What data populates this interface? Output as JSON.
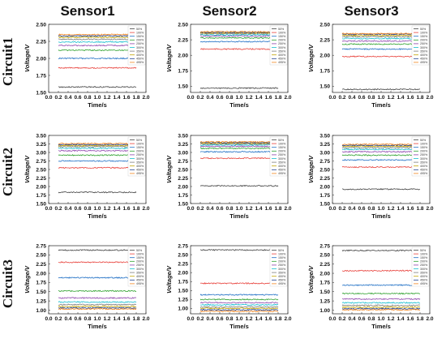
{
  "column_titles": [
    "Sensor1",
    "Sensor2",
    "Sensor3"
  ],
  "row_titles": [
    "Circuit1",
    "Circuit2",
    "Circuit3"
  ],
  "legend_labels": [
    "50%",
    "100%",
    "150%",
    "200%",
    "250%",
    "300%",
    "350%",
    "400%",
    "450%",
    "495%"
  ],
  "series_colors": [
    "#444444",
    "#e8413b",
    "#1f6fc5",
    "#2ca02c",
    "#8e44ad",
    "#17becf",
    "#7f7f7f",
    "#c2a400",
    "#1f3f8f",
    "#f2861f"
  ],
  "chart_data": [
    {
      "type": "line",
      "panel": "Circuit1-Sensor1",
      "xlabel": "Time/s",
      "ylabel": "Voltage/V",
      "x": [
        0.2,
        1.8
      ],
      "xlim": [
        0.0,
        2.0
      ],
      "xticks": [
        "0.0",
        "0.2",
        "0.4",
        "0.6",
        "0.8",
        "1.0",
        "1.2",
        "1.4",
        "1.6",
        "1.8",
        "2.0"
      ],
      "ylim": [
        1.5,
        2.5
      ],
      "yticks": [
        "1.50",
        "1.75",
        "2.00",
        "2.25",
        "2.50"
      ],
      "grid": false,
      "legend": "top-right",
      "series": [
        {
          "name": "50%",
          "values": [
            1.58,
            1.58
          ]
        },
        {
          "name": "100%",
          "values": [
            1.86,
            1.86
          ]
        },
        {
          "name": "150%",
          "values": [
            2.0,
            2.0
          ]
        },
        {
          "name": "200%",
          "values": [
            2.12,
            2.12
          ]
        },
        {
          "name": "250%",
          "values": [
            2.19,
            2.19
          ]
        },
        {
          "name": "300%",
          "values": [
            2.24,
            2.24
          ]
        },
        {
          "name": "350%",
          "values": [
            2.28,
            2.28
          ]
        },
        {
          "name": "400%",
          "values": [
            2.31,
            2.31
          ]
        },
        {
          "name": "450%",
          "values": [
            2.33,
            2.33
          ]
        },
        {
          "name": "495%",
          "values": [
            2.35,
            2.35
          ]
        }
      ]
    },
    {
      "type": "line",
      "panel": "Circuit1-Sensor2",
      "xlabel": "Time/s",
      "ylabel": "Voltage/V",
      "x": [
        0.2,
        1.8
      ],
      "xlim": [
        0.0,
        2.0
      ],
      "xticks": [
        "0.0",
        "0.2",
        "0.4",
        "0.6",
        "0.8",
        "1.0",
        "1.2",
        "1.4",
        "1.6",
        "1.8",
        "2.0"
      ],
      "ylim": [
        1.4,
        2.5
      ],
      "yticks": [
        "1.50",
        "1.75",
        "2.00",
        "2.25",
        "2.50"
      ],
      "grid": false,
      "legend": "top-right",
      "series": [
        {
          "name": "50%",
          "values": [
            1.47,
            1.47
          ]
        },
        {
          "name": "100%",
          "values": [
            2.1,
            2.1
          ]
        },
        {
          "name": "150%",
          "values": [
            2.22,
            2.22
          ]
        },
        {
          "name": "200%",
          "values": [
            2.28,
            2.28
          ]
        },
        {
          "name": "250%",
          "values": [
            2.31,
            2.31
          ]
        },
        {
          "name": "300%",
          "values": [
            2.33,
            2.33
          ]
        },
        {
          "name": "350%",
          "values": [
            2.35,
            2.35
          ]
        },
        {
          "name": "400%",
          "values": [
            2.36,
            2.36
          ]
        },
        {
          "name": "450%",
          "values": [
            2.37,
            2.37
          ]
        },
        {
          "name": "495%",
          "values": [
            2.38,
            2.38
          ]
        }
      ]
    },
    {
      "type": "line",
      "panel": "Circuit1-Sensor3",
      "xlabel": "Time/s",
      "ylabel": "Voltage/V",
      "x": [
        0.2,
        1.8
      ],
      "xlim": [
        0.0,
        2.0
      ],
      "xticks": [
        "0.0",
        "0.2",
        "0.4",
        "0.6",
        "0.8",
        "1.0",
        "1.2",
        "1.4",
        "1.6",
        "1.8",
        "2.0"
      ],
      "ylim": [
        1.4,
        2.5
      ],
      "yticks": [
        "1.50",
        "1.75",
        "2.00",
        "2.25",
        "2.50"
      ],
      "grid": false,
      "legend": "top-right",
      "series": [
        {
          "name": "50%",
          "values": [
            1.45,
            1.45
          ]
        },
        {
          "name": "100%",
          "values": [
            1.98,
            1.98
          ]
        },
        {
          "name": "150%",
          "values": [
            2.1,
            2.1
          ]
        },
        {
          "name": "200%",
          "values": [
            2.18,
            2.18
          ]
        },
        {
          "name": "250%",
          "values": [
            2.23,
            2.23
          ]
        },
        {
          "name": "300%",
          "values": [
            2.27,
            2.27
          ]
        },
        {
          "name": "350%",
          "values": [
            2.3,
            2.3
          ]
        },
        {
          "name": "400%",
          "values": [
            2.32,
            2.32
          ]
        },
        {
          "name": "450%",
          "values": [
            2.34,
            2.34
          ]
        },
        {
          "name": "495%",
          "values": [
            2.35,
            2.35
          ]
        }
      ]
    },
    {
      "type": "line",
      "panel": "Circuit2-Sensor1",
      "xlabel": "Time/s",
      "ylabel": "Voltage/V",
      "x": [
        0.2,
        1.8
      ],
      "xlim": [
        0.0,
        2.0
      ],
      "xticks": [
        "0.0",
        "0.2",
        "0.4",
        "0.6",
        "0.8",
        "1.0",
        "1.2",
        "1.4",
        "1.6",
        "1.8",
        "2.0"
      ],
      "ylim": [
        1.5,
        3.5
      ],
      "yticks": [
        "1.50",
        "1.75",
        "2.00",
        "2.25",
        "2.50",
        "2.75",
        "3.00",
        "3.25",
        "3.50"
      ],
      "grid": false,
      "legend": "top-right",
      "series": [
        {
          "name": "50%",
          "values": [
            1.83,
            1.83
          ]
        },
        {
          "name": "100%",
          "values": [
            2.55,
            2.55
          ]
        },
        {
          "name": "150%",
          "values": [
            2.75,
            2.75
          ]
        },
        {
          "name": "200%",
          "values": [
            2.92,
            2.92
          ]
        },
        {
          "name": "250%",
          "values": [
            3.05,
            3.05
          ]
        },
        {
          "name": "300%",
          "values": [
            3.12,
            3.12
          ]
        },
        {
          "name": "350%",
          "values": [
            3.17,
            3.17
          ]
        },
        {
          "name": "400%",
          "values": [
            3.2,
            3.2
          ]
        },
        {
          "name": "450%",
          "values": [
            3.23,
            3.23
          ]
        },
        {
          "name": "495%",
          "values": [
            3.26,
            3.26
          ]
        }
      ]
    },
    {
      "type": "line",
      "panel": "Circuit2-Sensor2",
      "xlabel": "Time/s",
      "ylabel": "Voltage/V",
      "x": [
        0.2,
        1.8
      ],
      "xlim": [
        0.0,
        2.0
      ],
      "xticks": [
        "0.0",
        "0.2",
        "0.4",
        "0.6",
        "0.8",
        "1.0",
        "1.2",
        "1.4",
        "1.6",
        "1.8",
        "2.0"
      ],
      "ylim": [
        1.5,
        3.5
      ],
      "yticks": [
        "1.50",
        "1.75",
        "2.00",
        "2.25",
        "2.50",
        "2.75",
        "3.00",
        "3.25",
        "3.50"
      ],
      "grid": false,
      "legend": "top-right",
      "series": [
        {
          "name": "50%",
          "values": [
            2.02,
            2.02
          ]
        },
        {
          "name": "100%",
          "values": [
            2.83,
            2.83
          ]
        },
        {
          "name": "150%",
          "values": [
            3.02,
            3.02
          ]
        },
        {
          "name": "200%",
          "values": [
            3.12,
            3.12
          ]
        },
        {
          "name": "250%",
          "values": [
            3.18,
            3.18
          ]
        },
        {
          "name": "300%",
          "values": [
            3.22,
            3.22
          ]
        },
        {
          "name": "350%",
          "values": [
            3.25,
            3.25
          ]
        },
        {
          "name": "400%",
          "values": [
            3.27,
            3.27
          ]
        },
        {
          "name": "450%",
          "values": [
            3.29,
            3.29
          ]
        },
        {
          "name": "495%",
          "values": [
            3.31,
            3.31
          ]
        }
      ]
    },
    {
      "type": "line",
      "panel": "Circuit2-Sensor3",
      "xlabel": "Time/s",
      "ylabel": "Voltage/V",
      "x": [
        0.2,
        1.8
      ],
      "xlim": [
        0.0,
        2.0
      ],
      "xticks": [
        "0.0",
        "0.2",
        "0.4",
        "0.6",
        "0.8",
        "1.0",
        "1.2",
        "1.4",
        "1.6",
        "1.8",
        "2.0"
      ],
      "ylim": [
        1.5,
        3.5
      ],
      "yticks": [
        "1.50",
        "1.75",
        "2.00",
        "2.25",
        "2.50",
        "2.75",
        "3.00",
        "3.25",
        "3.50"
      ],
      "grid": false,
      "legend": "top-right",
      "series": [
        {
          "name": "50%",
          "values": [
            1.92,
            1.92
          ]
        },
        {
          "name": "100%",
          "values": [
            2.57,
            2.57
          ]
        },
        {
          "name": "150%",
          "values": [
            2.78,
            2.78
          ]
        },
        {
          "name": "200%",
          "values": [
            2.92,
            2.92
          ]
        },
        {
          "name": "250%",
          "values": [
            3.02,
            3.02
          ]
        },
        {
          "name": "300%",
          "values": [
            3.09,
            3.09
          ]
        },
        {
          "name": "350%",
          "values": [
            3.14,
            3.14
          ]
        },
        {
          "name": "400%",
          "values": [
            3.18,
            3.18
          ]
        },
        {
          "name": "450%",
          "values": [
            3.21,
            3.21
          ]
        },
        {
          "name": "495%",
          "values": [
            3.24,
            3.24
          ]
        }
      ]
    },
    {
      "type": "line",
      "panel": "Circuit3-Sensor1",
      "xlabel": "Time/s",
      "ylabel": "Voltage/V",
      "x": [
        0.2,
        1.8
      ],
      "xlim": [
        0.0,
        2.0
      ],
      "xticks": [
        "0.0",
        "0.2",
        "0.4",
        "0.6",
        "0.8",
        "1.0",
        "1.2",
        "1.4",
        "1.6",
        "1.8",
        "2.0"
      ],
      "ylim": [
        0.9,
        2.75
      ],
      "yticks": [
        "1.00",
        "1.25",
        "1.50",
        "1.75",
        "2.00",
        "2.25",
        "2.50",
        "2.75"
      ],
      "grid": false,
      "legend": "top-right",
      "series": [
        {
          "name": "50%",
          "values": [
            2.63,
            2.63
          ]
        },
        {
          "name": "100%",
          "values": [
            2.3,
            2.3
          ]
        },
        {
          "name": "150%",
          "values": [
            1.88,
            1.88
          ]
        },
        {
          "name": "200%",
          "values": [
            1.52,
            1.52
          ]
        },
        {
          "name": "250%",
          "values": [
            1.33,
            1.33
          ]
        },
        {
          "name": "300%",
          "values": [
            1.22,
            1.22
          ]
        },
        {
          "name": "350%",
          "values": [
            1.15,
            1.15
          ]
        },
        {
          "name": "400%",
          "values": [
            1.1,
            1.1
          ]
        },
        {
          "name": "450%",
          "values": [
            1.06,
            1.06
          ]
        },
        {
          "name": "495%",
          "values": [
            1.03,
            1.03
          ]
        }
      ]
    },
    {
      "type": "line",
      "panel": "Circuit3-Sensor2",
      "xlabel": "Time/s",
      "ylabel": "Voltage/V",
      "x": [
        0.2,
        1.8
      ],
      "xlim": [
        0.0,
        2.0
      ],
      "xticks": [
        "0.0",
        "0.2",
        "0.4",
        "0.6",
        "0.8",
        "1.0",
        "1.2",
        "1.4",
        "1.6",
        "1.8",
        "2.0"
      ],
      "ylim": [
        0.85,
        2.75
      ],
      "yticks": [
        "1.00",
        "1.25",
        "1.50",
        "1.75",
        "2.00",
        "2.25",
        "2.50",
        "2.75"
      ],
      "grid": false,
      "legend": "top-right",
      "series": [
        {
          "name": "50%",
          "values": [
            2.63,
            2.63
          ]
        },
        {
          "name": "100%",
          "values": [
            1.7,
            1.7
          ]
        },
        {
          "name": "150%",
          "values": [
            1.38,
            1.38
          ]
        },
        {
          "name": "200%",
          "values": [
            1.25,
            1.25
          ]
        },
        {
          "name": "250%",
          "values": [
            1.16,
            1.16
          ]
        },
        {
          "name": "300%",
          "values": [
            1.1,
            1.1
          ]
        },
        {
          "name": "350%",
          "values": [
            1.04,
            1.04
          ]
        },
        {
          "name": "400%",
          "values": [
            1.0,
            1.0
          ]
        },
        {
          "name": "450%",
          "values": [
            0.96,
            0.96
          ]
        },
        {
          "name": "495%",
          "values": [
            0.92,
            0.92
          ]
        }
      ]
    },
    {
      "type": "line",
      "panel": "Circuit3-Sensor3",
      "xlabel": "Time/s",
      "ylabel": "Voltage/V",
      "x": [
        0.2,
        1.8
      ],
      "xlim": [
        0.0,
        2.0
      ],
      "xticks": [
        "0.0",
        "0.2",
        "0.4",
        "0.6",
        "0.8",
        "1.0",
        "1.2",
        "1.4",
        "1.6",
        "1.8",
        "2.0"
      ],
      "ylim": [
        0.9,
        2.75
      ],
      "yticks": [
        "1.00",
        "1.25",
        "1.50",
        "1.75",
        "2.00",
        "2.25",
        "2.50",
        "2.75"
      ],
      "grid": false,
      "legend": "top-right",
      "series": [
        {
          "name": "50%",
          "values": [
            2.62,
            2.62
          ]
        },
        {
          "name": "100%",
          "values": [
            2.07,
            2.07
          ]
        },
        {
          "name": "150%",
          "values": [
            1.68,
            1.68
          ]
        },
        {
          "name": "200%",
          "values": [
            1.45,
            1.45
          ]
        },
        {
          "name": "250%",
          "values": [
            1.3,
            1.3
          ]
        },
        {
          "name": "300%",
          "values": [
            1.2,
            1.2
          ]
        },
        {
          "name": "350%",
          "values": [
            1.13,
            1.13
          ]
        },
        {
          "name": "400%",
          "values": [
            1.08,
            1.08
          ]
        },
        {
          "name": "450%",
          "values": [
            1.04,
            1.04
          ]
        },
        {
          "name": "495%",
          "values": [
            1.01,
            1.01
          ]
        }
      ]
    }
  ]
}
